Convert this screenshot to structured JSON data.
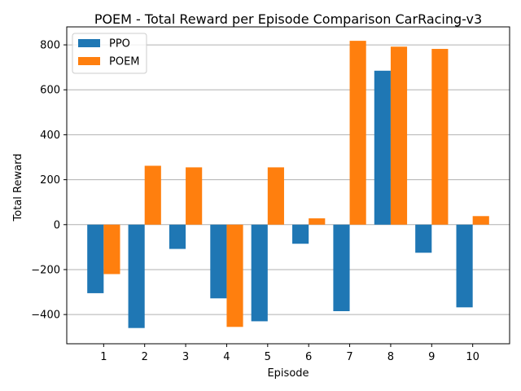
{
  "chart_data": {
    "type": "bar",
    "title": "POEM - Total Reward per Episode Comparison CarRacing-v3",
    "xlabel": "Episode",
    "ylabel": "Total Reward",
    "categories": [
      "1",
      "2",
      "3",
      "4",
      "5",
      "6",
      "7",
      "8",
      "9",
      "10"
    ],
    "series": [
      {
        "name": "PPO",
        "color": "#1f77b4",
        "values": [
          -305,
          -460,
          -108,
          -328,
          -430,
          -85,
          -385,
          685,
          -125,
          -368
        ]
      },
      {
        "name": "POEM",
        "color": "#ff7f0e",
        "values": [
          -220,
          262,
          255,
          -455,
          255,
          28,
          818,
          792,
          782,
          38
        ]
      }
    ],
    "ylim": [
      -530,
      880
    ],
    "yticks": [
      -400,
      -200,
      0,
      200,
      400,
      600,
      800
    ],
    "grid": "y",
    "legend_position": "top-left"
  }
}
